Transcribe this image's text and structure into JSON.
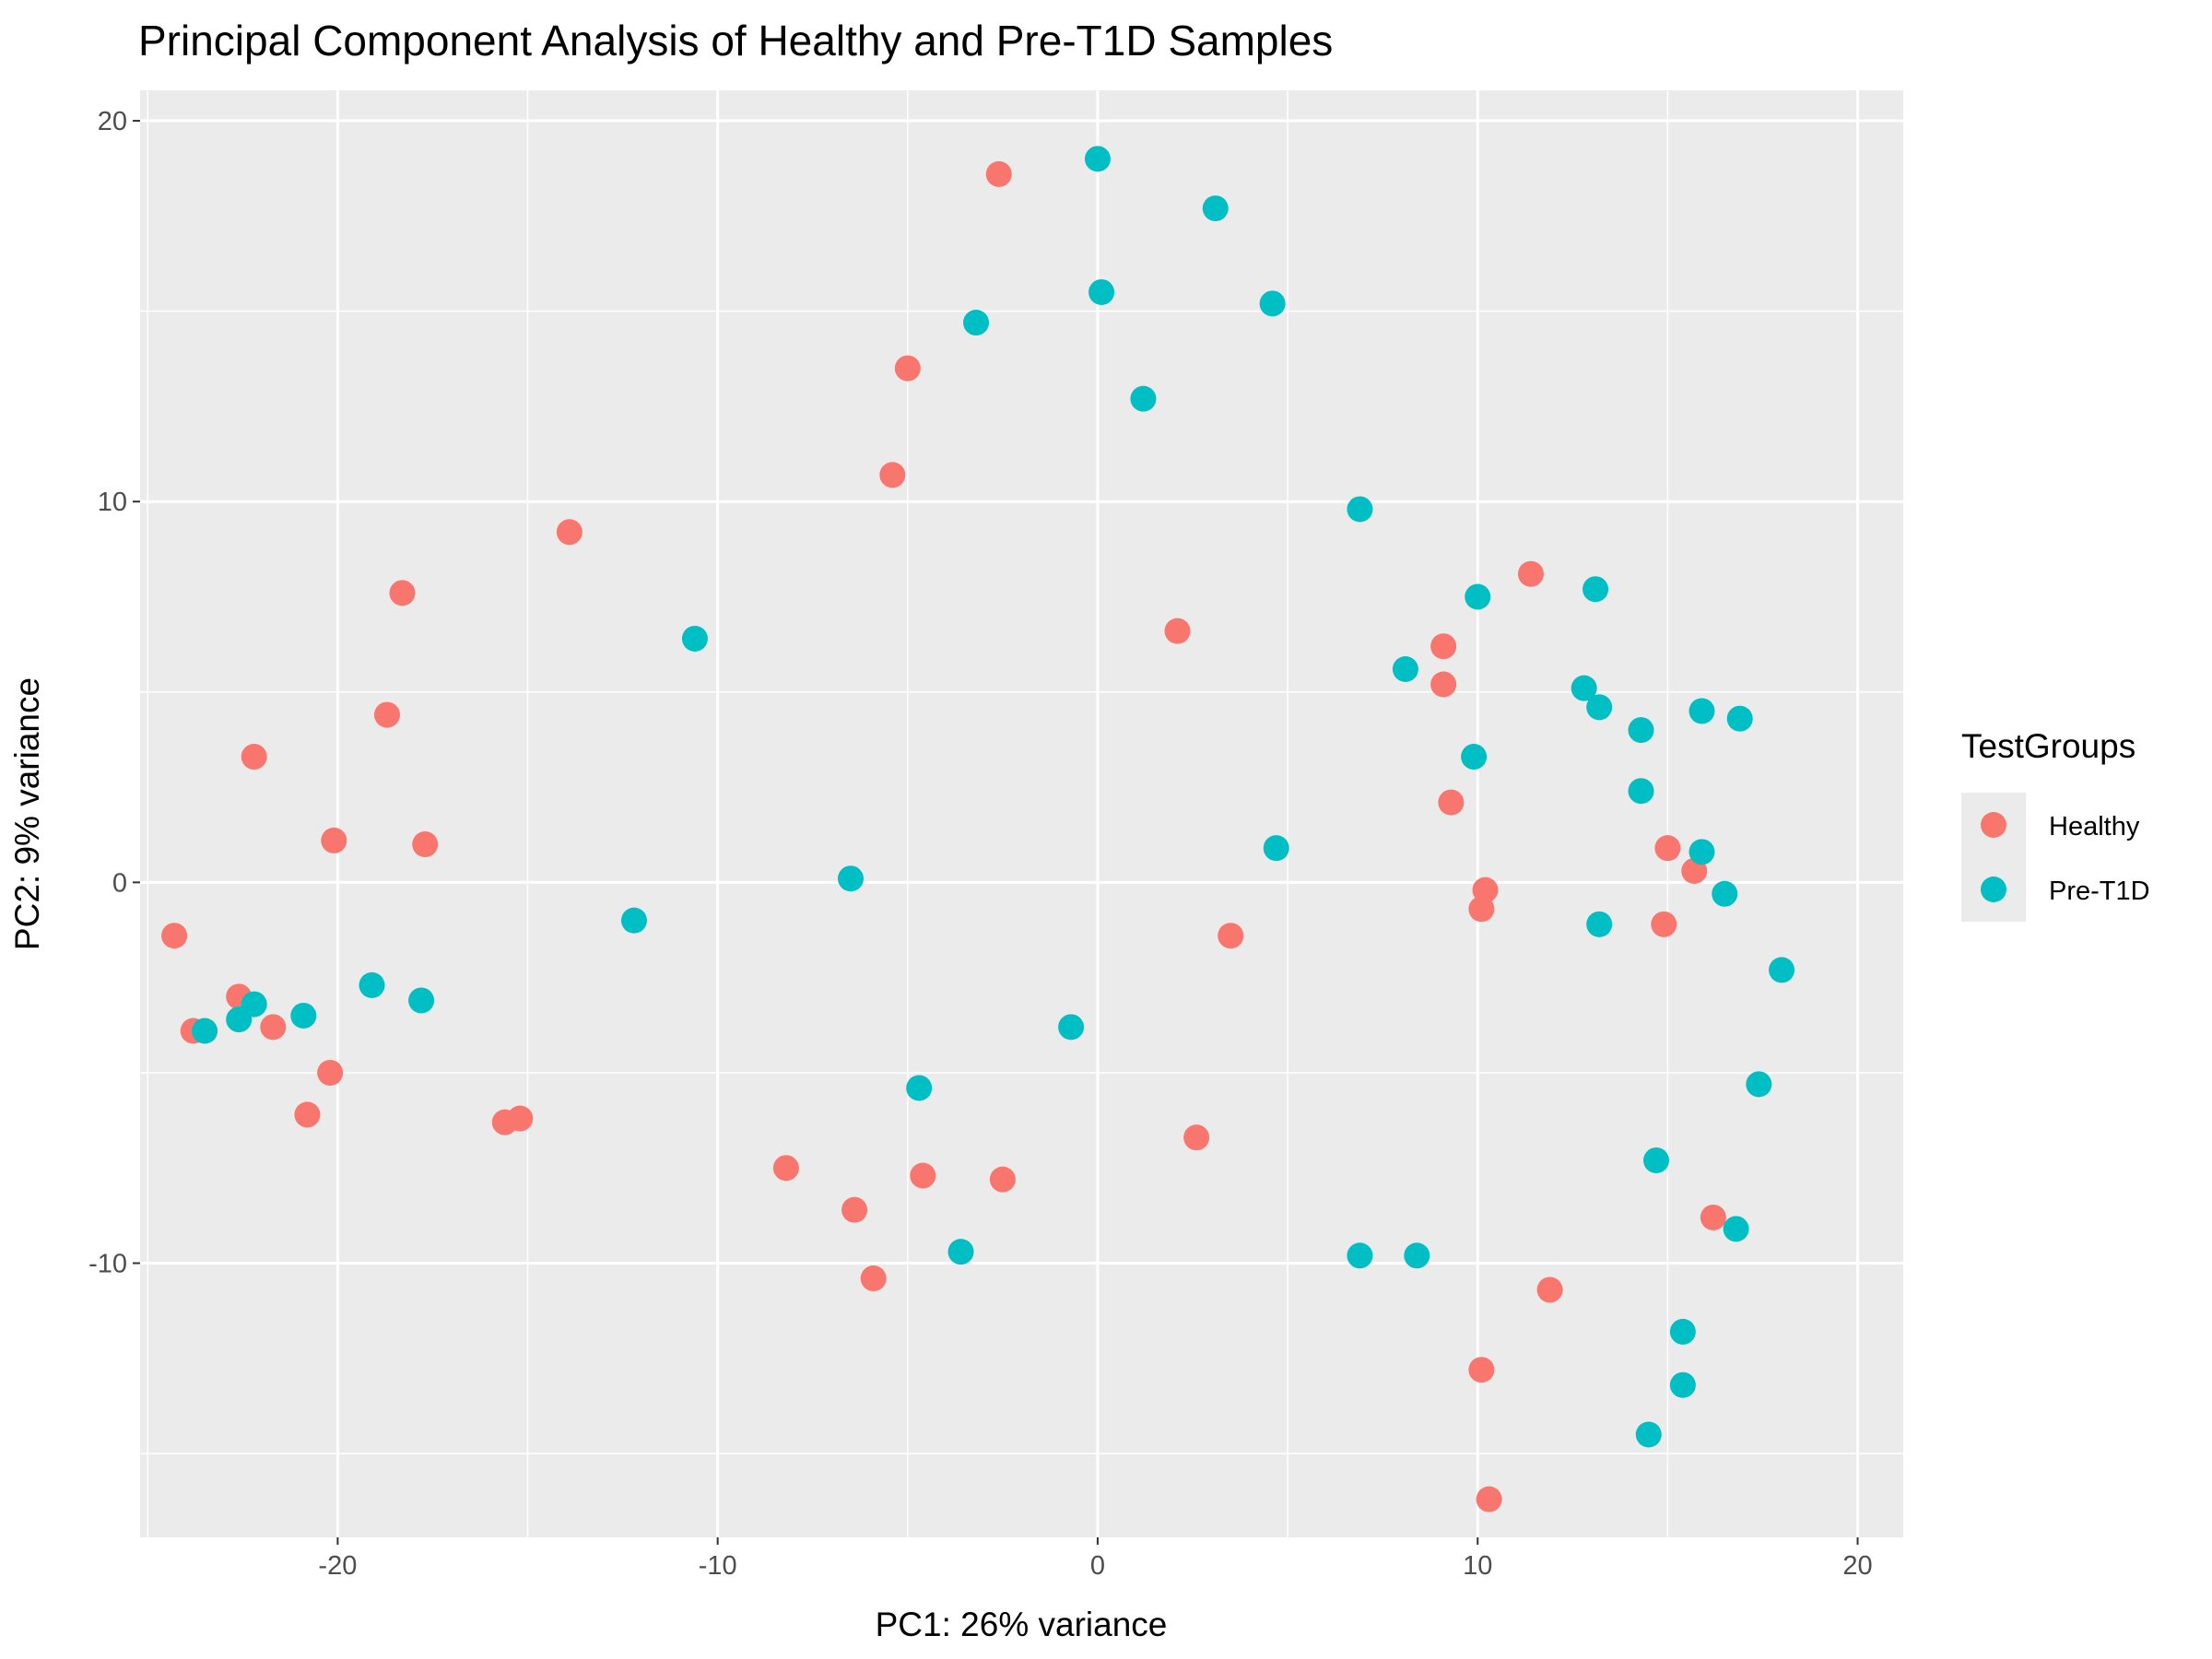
{
  "chart_data": {
    "type": "scatter",
    "title": "Principal Component Analysis of Healthy and Pre-T1D Samples",
    "xlabel": "PC1: 26% variance",
    "ylabel": "PC2: 9% variance",
    "xlim": [
      -25.2,
      21.2
    ],
    "ylim": [
      -17.2,
      20.8
    ],
    "x_ticks": [
      -20,
      -10,
      0,
      10,
      20
    ],
    "x_tick_labels": [
      "-20",
      "-10",
      "0",
      "10",
      "20"
    ],
    "y_ticks": [
      -10,
      0,
      10,
      20
    ],
    "y_tick_labels": [
      "-10",
      "0",
      "10",
      "20"
    ],
    "grid": true,
    "panel_background": "#ebebeb",
    "legend": {
      "title": "TestGroups",
      "position": "right"
    },
    "series": [
      {
        "name": "Healthy",
        "color": "#f8766d",
        "points": [
          [
            -2.6,
            18.6
          ],
          [
            -5.0,
            13.5
          ],
          [
            -5.4,
            10.7
          ],
          [
            -13.9,
            9.2
          ],
          [
            -18.3,
            7.6
          ],
          [
            -18.7,
            4.4
          ],
          [
            -22.2,
            3.3
          ],
          [
            -20.1,
            1.1
          ],
          [
            -17.7,
            1.0
          ],
          [
            -24.3,
            -1.4
          ],
          [
            -22.6,
            -3.0
          ],
          [
            -23.8,
            -3.9
          ],
          [
            -21.7,
            -3.8
          ],
          [
            -20.2,
            -5.0
          ],
          [
            -20.8,
            -6.1
          ],
          [
            -15.6,
            -6.3
          ],
          [
            -15.2,
            -6.2
          ],
          [
            -8.2,
            -7.5
          ],
          [
            -6.4,
            -8.6
          ],
          [
            -4.6,
            -7.7
          ],
          [
            -2.5,
            -7.8
          ],
          [
            -5.9,
            -10.4
          ],
          [
            2.1,
            6.6
          ],
          [
            3.5,
            -1.4
          ],
          [
            2.6,
            -6.7
          ],
          [
            9.1,
            6.2
          ],
          [
            9.1,
            5.2
          ],
          [
            11.4,
            8.1
          ],
          [
            9.3,
            2.1
          ],
          [
            10.2,
            -0.2
          ],
          [
            10.1,
            -0.7
          ],
          [
            15.0,
            0.9
          ],
          [
            15.7,
            0.3
          ],
          [
            14.9,
            -1.1
          ],
          [
            16.2,
            -8.8
          ],
          [
            11.9,
            -10.7
          ],
          [
            10.1,
            -12.8
          ],
          [
            10.3,
            -16.2
          ]
        ]
      },
      {
        "name": "Pre-T1D",
        "color": "#00bfc4",
        "points": [
          [
            0.0,
            19.0
          ],
          [
            3.1,
            17.7
          ],
          [
            0.1,
            15.5
          ],
          [
            -3.2,
            14.7
          ],
          [
            4.6,
            15.2
          ],
          [
            1.2,
            12.7
          ],
          [
            6.9,
            9.8
          ],
          [
            10.0,
            7.5
          ],
          [
            13.1,
            7.7
          ],
          [
            -10.6,
            6.4
          ],
          [
            8.1,
            5.6
          ],
          [
            12.8,
            5.1
          ],
          [
            13.2,
            4.6
          ],
          [
            14.3,
            4.0
          ],
          [
            15.9,
            4.5
          ],
          [
            16.9,
            4.3
          ],
          [
            9.9,
            3.3
          ],
          [
            14.3,
            2.4
          ],
          [
            15.9,
            0.8
          ],
          [
            16.5,
            -0.3
          ],
          [
            4.7,
            0.9
          ],
          [
            13.2,
            -1.1
          ],
          [
            -6.5,
            0.1
          ],
          [
            -12.2,
            -1.0
          ],
          [
            18.0,
            -2.3
          ],
          [
            -19.1,
            -2.7
          ],
          [
            -17.8,
            -3.1
          ],
          [
            -20.9,
            -3.5
          ],
          [
            -22.2,
            -3.2
          ],
          [
            -22.6,
            -3.6
          ],
          [
            -23.5,
            -3.9
          ],
          [
            -0.7,
            -3.8
          ],
          [
            -4.7,
            -5.4
          ],
          [
            17.4,
            -5.3
          ],
          [
            14.7,
            -7.3
          ],
          [
            -3.6,
            -9.7
          ],
          [
            6.9,
            -9.8
          ],
          [
            8.4,
            -9.8
          ],
          [
            16.8,
            -9.1
          ],
          [
            15.4,
            -11.8
          ],
          [
            15.4,
            -13.2
          ],
          [
            14.5,
            -14.5
          ]
        ]
      }
    ]
  }
}
